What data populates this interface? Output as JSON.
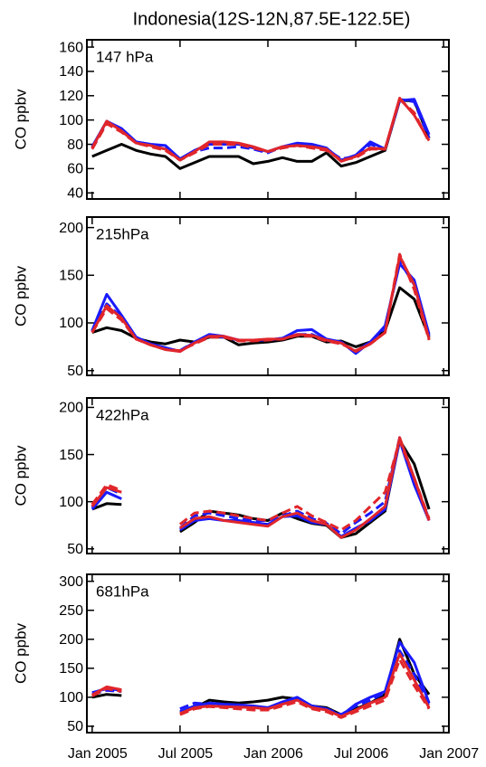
{
  "title": "Indonesia(12S-12N,87.5E-122.5E)",
  "chart_data": [
    {
      "type": "line",
      "label": "147 hPa",
      "ylabel": "CO ppbv",
      "x": [
        2005,
        2005.083,
        2005.167,
        2005.25,
        2005.333,
        2005.417,
        2005.5,
        2005.583,
        2005.667,
        2005.75,
        2005.833,
        2005.917,
        2006,
        2006.083,
        2006.167,
        2006.25,
        2006.333,
        2006.417,
        2006.5,
        2006.583,
        2006.667,
        2006.75,
        2006.833,
        2006.917
      ],
      "xlim": [
        2004.97,
        2007.03
      ],
      "xticks": [
        {
          "value": 2005,
          "label": "Jan 2005"
        },
        {
          "value": 2005.5,
          "label": "Jul 2005"
        },
        {
          "value": 2006,
          "label": "Jan 2006"
        },
        {
          "value": 2006.5,
          "label": "Jul 2006"
        },
        {
          "value": 2007,
          "label": "Jan 2007"
        }
      ],
      "ylim": [
        35,
        166
      ],
      "yticks": [
        40,
        60,
        80,
        100,
        120,
        140,
        160
      ],
      "series": [
        {
          "color": "#000000",
          "dash": false,
          "values": [
            70,
            75,
            80,
            75,
            72,
            70,
            60,
            65,
            70,
            70,
            70,
            64,
            66,
            69,
            66,
            66,
            73,
            62,
            65,
            70,
            75,
            116,
            116,
            85
          ]
        },
        {
          "color": "#1a1aff",
          "dash": false,
          "values": [
            78,
            99,
            93,
            82,
            80,
            79,
            68,
            75,
            80,
            80,
            80,
            77,
            74,
            78,
            81,
            80,
            77,
            67,
            71,
            82,
            76,
            116,
            117,
            88
          ]
        },
        {
          "color": "#1a1aff",
          "dash": true,
          "values": [
            77,
            98,
            92,
            81,
            79,
            77,
            68,
            74,
            77,
            77,
            78,
            76,
            73,
            78,
            79,
            78,
            76,
            68,
            70,
            80,
            76,
            117,
            115,
            85
          ]
        },
        {
          "color": "#e0262b",
          "dash": false,
          "values": [
            77,
            99,
            91,
            81,
            79,
            76,
            67,
            74,
            82,
            82,
            81,
            78,
            74,
            78,
            79,
            78,
            76,
            66,
            70,
            77,
            76,
            118,
            104,
            83
          ]
        },
        {
          "color": "#e0262b",
          "dash": true,
          "values": [
            76,
            97,
            90,
            81,
            78,
            75,
            67,
            73,
            80,
            80,
            80,
            77,
            74,
            77,
            79,
            77,
            75,
            67,
            69,
            76,
            76,
            117,
            106,
            82
          ]
        }
      ]
    },
    {
      "type": "line",
      "label": "215hPa",
      "ylabel": "CO ppbv",
      "x": [
        2005,
        2005.083,
        2005.167,
        2005.25,
        2005.333,
        2005.417,
        2005.5,
        2005.583,
        2005.667,
        2005.75,
        2005.833,
        2005.917,
        2006,
        2006.083,
        2006.167,
        2006.25,
        2006.333,
        2006.417,
        2006.5,
        2006.583,
        2006.667,
        2006.75,
        2006.833,
        2006.917
      ],
      "xlim": [
        2004.97,
        2007.03
      ],
      "xticks": [
        {
          "value": 2005,
          "label": "Jan 2005"
        },
        {
          "value": 2005.5,
          "label": "Jul 2005"
        },
        {
          "value": 2006,
          "label": "Jan 2006"
        },
        {
          "value": 2006.5,
          "label": "Jul 2006"
        },
        {
          "value": 2007,
          "label": "Jan 2007"
        }
      ],
      "ylim": [
        45,
        211
      ],
      "yticks": [
        50,
        100,
        150,
        200
      ],
      "series": [
        {
          "color": "#000000",
          "dash": false,
          "values": [
            90,
            95,
            92,
            84,
            80,
            78,
            82,
            80,
            85,
            85,
            77,
            79,
            80,
            82,
            86,
            86,
            80,
            81,
            75,
            80,
            92,
            137,
            125,
            85
          ]
        },
        {
          "color": "#1a1aff",
          "dash": false,
          "values": [
            92,
            130,
            108,
            85,
            78,
            74,
            70,
            80,
            88,
            86,
            82,
            82,
            82,
            84,
            92,
            93,
            83,
            80,
            68,
            80,
            97,
            162,
            145,
            88
          ]
        },
        {
          "color": "#1a1aff",
          "dash": true,
          "values": [
            91,
            120,
            106,
            84,
            78,
            73,
            71,
            80,
            86,
            85,
            82,
            82,
            82,
            84,
            88,
            88,
            82,
            79,
            70,
            80,
            95,
            165,
            140,
            86
          ]
        },
        {
          "color": "#e0262b",
          "dash": false,
          "values": [
            90,
            118,
            105,
            83,
            77,
            72,
            70,
            79,
            86,
            86,
            82,
            82,
            83,
            83,
            88,
            87,
            82,
            79,
            70,
            78,
            90,
            170,
            140,
            83
          ]
        },
        {
          "color": "#e0262b",
          "dash": true,
          "values": [
            90,
            115,
            103,
            83,
            77,
            72,
            71,
            78,
            85,
            85,
            81,
            81,
            82,
            83,
            87,
            86,
            81,
            78,
            71,
            78,
            90,
            172,
            135,
            82
          ]
        }
      ]
    },
    {
      "type": "line",
      "label": "422hPa",
      "ylabel": "CO ppbv",
      "x": [
        2005,
        2005.083,
        2005.167,
        2005.25,
        2005.333,
        2005.417,
        2005.5,
        2005.583,
        2005.667,
        2005.75,
        2005.833,
        2005.917,
        2006,
        2006.083,
        2006.167,
        2006.25,
        2006.333,
        2006.417,
        2006.5,
        2006.583,
        2006.667,
        2006.75,
        2006.833,
        2006.917
      ],
      "xlim": [
        2004.97,
        2007.03
      ],
      "xticks": [
        {
          "value": 2005,
          "label": "Jan 2005"
        },
        {
          "value": 2005.5,
          "label": "Jul 2005"
        },
        {
          "value": 2006,
          "label": "Jan 2006"
        },
        {
          "value": 2006.5,
          "label": "Jul 2006"
        },
        {
          "value": 2007,
          "label": "Jan 2007"
        }
      ],
      "ylim": [
        45,
        210
      ],
      "yticks": [
        50,
        100,
        150,
        200
      ],
      "series": [
        {
          "color": "#000000",
          "dash": false,
          "values": [
            92,
            98,
            97,
            null,
            null,
            null,
            68,
            78,
            90,
            88,
            86,
            82,
            80,
            88,
            82,
            77,
            75,
            62,
            66,
            78,
            90,
            165,
            140,
            92
          ]
        },
        {
          "color": "#1a1aff",
          "dash": false,
          "values": [
            92,
            110,
            103,
            null,
            null,
            null,
            70,
            80,
            82,
            80,
            80,
            78,
            76,
            84,
            85,
            78,
            76,
            63,
            72,
            80,
            92,
            165,
            118,
            80
          ]
        },
        {
          "color": "#1a1aff",
          "dash": true,
          "values": [
            94,
            115,
            108,
            null,
            null,
            null,
            72,
            85,
            88,
            85,
            82,
            80,
            80,
            85,
            90,
            82,
            77,
            66,
            78,
            88,
            100,
            168,
            120,
            82
          ]
        },
        {
          "color": "#e0262b",
          "dash": false,
          "values": [
            95,
            115,
            110,
            null,
            null,
            null,
            72,
            82,
            84,
            80,
            78,
            76,
            74,
            84,
            88,
            80,
            76,
            62,
            70,
            82,
            95,
            168,
            125,
            80
          ]
        },
        {
          "color": "#e0262b",
          "dash": true,
          "values": [
            97,
            118,
            112,
            null,
            null,
            null,
            76,
            88,
            90,
            88,
            85,
            82,
            80,
            88,
            95,
            85,
            78,
            70,
            80,
            95,
            110,
            165,
            125,
            82
          ]
        }
      ]
    },
    {
      "type": "line",
      "label": "681hPa",
      "ylabel": "CO ppbv",
      "x": [
        2005,
        2005.083,
        2005.167,
        2005.25,
        2005.333,
        2005.417,
        2005.5,
        2005.583,
        2005.667,
        2005.75,
        2005.833,
        2005.917,
        2006,
        2006.083,
        2006.167,
        2006.25,
        2006.333,
        2006.417,
        2006.5,
        2006.583,
        2006.667,
        2006.75,
        2006.833,
        2006.917
      ],
      "xlim": [
        2004.97,
        2007.03
      ],
      "xticks": [
        {
          "value": 2005,
          "label": "Jan 2005"
        },
        {
          "value": 2005.5,
          "label": "Jul 2005"
        },
        {
          "value": 2006,
          "label": "Jan 2006"
        },
        {
          "value": 2006.5,
          "label": "Jul 2006"
        },
        {
          "value": 2007,
          "label": "Jan 2007"
        }
      ],
      "ylim": [
        39,
        312
      ],
      "yticks": [
        50,
        100,
        150,
        200,
        250,
        300
      ],
      "series": [
        {
          "color": "#000000",
          "dash": false,
          "values": [
            100,
            105,
            103,
            null,
            null,
            null,
            75,
            82,
            95,
            92,
            90,
            92,
            95,
            100,
            97,
            85,
            82,
            70,
            80,
            90,
            105,
            200,
            140,
            105
          ]
        },
        {
          "color": "#1a1aff",
          "dash": false,
          "values": [
            108,
            115,
            112,
            null,
            null,
            null,
            75,
            85,
            90,
            88,
            87,
            85,
            82,
            92,
            100,
            85,
            80,
            68,
            88,
            100,
            110,
            195,
            160,
            90
          ]
        },
        {
          "color": "#1a1aff",
          "dash": true,
          "values": [
            105,
            112,
            110,
            null,
            null,
            null,
            80,
            90,
            88,
            86,
            85,
            82,
            80,
            90,
            95,
            85,
            80,
            70,
            85,
            95,
            108,
            180,
            140,
            85
          ]
        },
        {
          "color": "#e0262b",
          "dash": false,
          "values": [
            104,
            118,
            113,
            null,
            null,
            null,
            72,
            82,
            85,
            84,
            83,
            82,
            80,
            88,
            95,
            82,
            78,
            67,
            78,
            90,
            100,
            175,
            130,
            82
          ]
        },
        {
          "color": "#e0262b",
          "dash": true,
          "values": [
            102,
            115,
            110,
            null,
            null,
            null,
            70,
            80,
            84,
            82,
            80,
            78,
            78,
            85,
            92,
            80,
            75,
            65,
            75,
            85,
            95,
            165,
            120,
            80
          ]
        }
      ]
    }
  ]
}
